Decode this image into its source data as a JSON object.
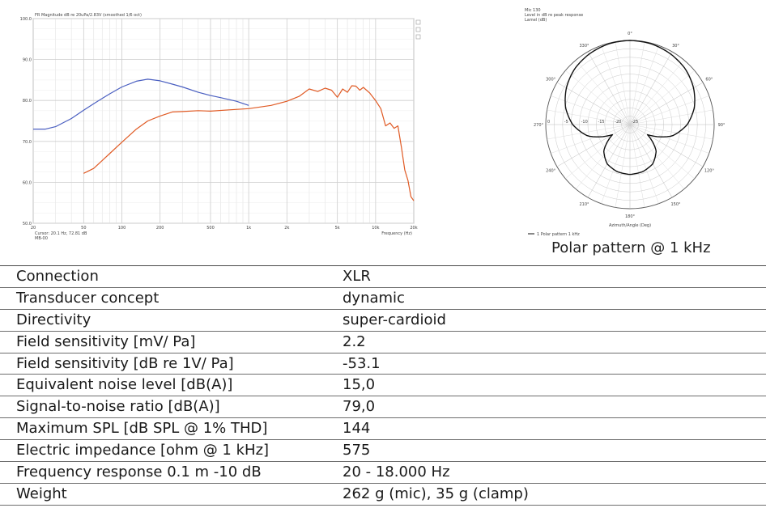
{
  "charts": {
    "frequency_response": {
      "title": "FR Magnitude dB re 20uPa/2.83V (smoothed 1/6 oct)",
      "cursor_text": "Cursor: 20.1 Hz, 72.81 dB",
      "ms_text": "MB-00",
      "axis_xlabel": "Frequency (Hz)"
    },
    "polar": {
      "caption": "Polar pattern @ 1 kHz",
      "header_line_1": "Mic 130",
      "header_line_2": "Level in dB re peak response",
      "header_line_3": "Lamel (dB)",
      "legend_text": "1 Polar pattern 1 kHz",
      "footer_text": "Azimuth/Angle (Deg)"
    }
  },
  "chart_data": [
    {
      "type": "line",
      "title": "FR Magnitude dB re 20uPa/2.83V (smoothed 1/6 oct)",
      "xlabel": "Frequency (Hz)",
      "ylabel": "",
      "x_scale": "log",
      "xlim": [
        20,
        20000
      ],
      "ylim": [
        50,
        100
      ],
      "x_ticks": [
        20,
        50,
        100,
        200,
        500,
        1000,
        2000,
        5000,
        10000,
        20000
      ],
      "x_tick_labels": [
        "20",
        "50",
        "100",
        "200",
        "500",
        "1k",
        "2k",
        "5k",
        "10k",
        "20k"
      ],
      "y_ticks": [
        50,
        60,
        70,
        80,
        90,
        100
      ],
      "y_tick_labels": [
        "50.0",
        "60.0",
        "70.0",
        "80.0",
        "90.0",
        "100.0"
      ],
      "grid": true,
      "series": [
        {
          "color": "#4a5fc1",
          "x": [
            20,
            25,
            30,
            40,
            50,
            60,
            80,
            100,
            130,
            160,
            200,
            250,
            300,
            400,
            500,
            600,
            800,
            1000
          ],
          "y": [
            73.0,
            73.0,
            73.6,
            75.6,
            77.6,
            79.2,
            81.6,
            83.3,
            84.7,
            85.2,
            84.8,
            84.0,
            83.3,
            82.0,
            81.2,
            80.7,
            79.8,
            78.8
          ]
        },
        {
          "color": "#e05a24",
          "x": [
            50,
            60,
            80,
            100,
            130,
            160,
            200,
            250,
            300,
            400,
            500,
            700,
            1000,
            1500,
            2000,
            2500,
            3000,
            3500,
            4000,
            4500,
            5000,
            5500,
            6000,
            6500,
            7000,
            7500,
            8000,
            9000,
            10000,
            11000,
            12000,
            13000,
            14000,
            15000,
            16000,
            17000,
            18000,
            19000,
            20000
          ],
          "y": [
            62.2,
            63.4,
            67.0,
            69.8,
            73.0,
            75.0,
            76.2,
            77.2,
            77.3,
            77.5,
            77.4,
            77.7,
            78.0,
            78.8,
            79.8,
            81.0,
            82.8,
            82.2,
            83.0,
            82.5,
            80.8,
            82.8,
            82.0,
            83.6,
            83.5,
            82.5,
            83.2,
            81.8,
            80.0,
            78.0,
            73.8,
            74.5,
            73.2,
            73.8,
            68.5,
            63.0,
            60.5,
            56.5,
            55.5
          ]
        }
      ]
    },
    {
      "type": "polar",
      "title": "Polar pattern @ 1 kHz",
      "r_label": "Level (dB)",
      "angle_unit": "deg",
      "angle_ticks": [
        0,
        30,
        60,
        90,
        120,
        150,
        180,
        210,
        240,
        270,
        300,
        330
      ],
      "r_ticks": [
        -25,
        -20,
        -15,
        -10,
        -5,
        0
      ],
      "rlim": [
        -25,
        0
      ],
      "grid": true,
      "series": [
        {
          "color": "#111111",
          "pattern": "super-cardioid",
          "angles": [
            0,
            15,
            30,
            45,
            60,
            75,
            90,
            105,
            120,
            135,
            150,
            165,
            180,
            195,
            210,
            225,
            240,
            255,
            270,
            285,
            300,
            315,
            330,
            345,
            360
          ],
          "levels_db": [
            0,
            -0.2,
            -0.8,
            -1.7,
            -3.2,
            -5.2,
            -8.0,
            -12.0,
            -19.0,
            -14.0,
            -11.5,
            -10.5,
            -10.2,
            -10.5,
            -11.5,
            -14.0,
            -19.0,
            -12.0,
            -8.0,
            -5.2,
            -3.2,
            -1.7,
            -0.8,
            -0.2,
            0
          ]
        }
      ]
    }
  ],
  "specs": {
    "rows": [
      {
        "label": "Connection",
        "value": "XLR"
      },
      {
        "label": "Transducer concept",
        "value": "dynamic"
      },
      {
        "label": "Directivity",
        "value": "super-cardioid"
      },
      {
        "label": "Field sensitivity [mV/ Pa]",
        "value": "2.2"
      },
      {
        "label": "Field sensitivity [dB re 1V/ Pa]",
        "value": "-53.1"
      },
      {
        "label": "Equivalent noise level [dB(A)]",
        "value": "15,0"
      },
      {
        "label": "Signal-to-noise ratio [dB(A)]",
        "value": "79,0"
      },
      {
        "label": "Maximum SPL [dB SPL @ 1% THD]",
        "value": "144"
      },
      {
        "label": "Electric impedance [ohm @ 1 kHz]",
        "value": "575"
      },
      {
        "label": "Frequency response 0.1 m -10 dB",
        "value": "20 - 18.000 Hz"
      },
      {
        "label": "Weight",
        "value": "262 g (mic), 35 g (clamp)"
      }
    ]
  }
}
